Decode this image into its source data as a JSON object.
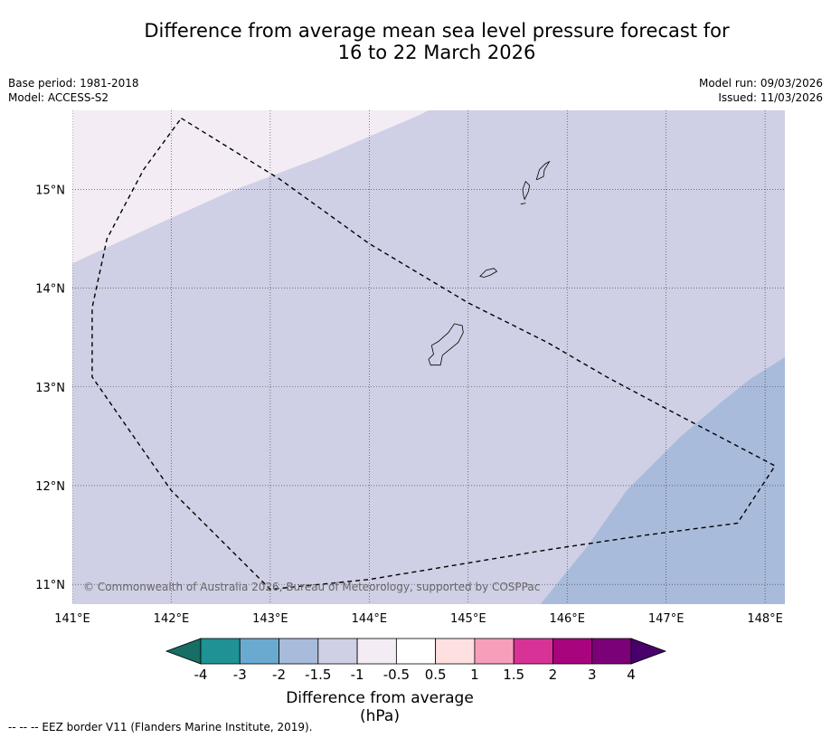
{
  "title": {
    "line1": "Difference from average mean sea level pressure forecast for",
    "line2": "16 to 22 March 2026"
  },
  "meta": {
    "base_period": "Base period: 1981-2018",
    "model": "Model: ACCESS-S2",
    "model_run": "Model run: 09/03/2026",
    "issued": "Issued: 11/03/2026"
  },
  "map": {
    "lon_range": [
      141.0,
      148.2
    ],
    "lat_range": [
      10.8,
      15.8
    ],
    "lon_ticks": [
      141,
      142,
      143,
      144,
      145,
      146,
      147,
      148
    ],
    "lon_labels": [
      "141°E",
      "142°E",
      "143°E",
      "144°E",
      "145°E",
      "146°E",
      "147°E",
      "148°E"
    ],
    "lat_ticks": [
      11,
      12,
      13,
      14,
      15
    ],
    "lat_labels": [
      "11°N",
      "12°N",
      "13°N",
      "14°N",
      "15°N"
    ],
    "copyright": "© Commonwealth of Australia 2026, Bureau of Meteorology, supported by COSPPac",
    "colors": {
      "range_-1.5_-1": "#cfd0e5",
      "range_-1_-0.5": "#f3ecf5",
      "range_-2_-1.5": "#a8bbdb"
    },
    "regions": [
      {
        "name": "region-minus-1.5-to-minus-1",
        "color": "#cfd0e5",
        "poly": [
          [
            141.0,
            10.8
          ],
          [
            148.2,
            10.8
          ],
          [
            148.2,
            15.8
          ],
          [
            141.0,
            15.8
          ]
        ]
      },
      {
        "name": "region-minus-1-to-minus-0.5",
        "color": "#f3ecf5",
        "poly": [
          [
            141.0,
            14.25
          ],
          [
            141.8,
            14.62
          ],
          [
            142.6,
            14.98
          ],
          [
            143.5,
            15.32
          ],
          [
            144.5,
            15.75
          ],
          [
            144.6,
            15.8
          ],
          [
            141.0,
            15.8
          ]
        ]
      },
      {
        "name": "region-minus-2-to-minus-1.5",
        "color": "#a8bbdb",
        "poly": [
          [
            145.73,
            10.8
          ],
          [
            146.2,
            11.38
          ],
          [
            146.6,
            11.95
          ],
          [
            147.15,
            12.5
          ],
          [
            147.55,
            12.84
          ],
          [
            147.85,
            13.08
          ],
          [
            148.2,
            13.3
          ],
          [
            148.2,
            10.8
          ]
        ]
      }
    ],
    "eez": [
      [
        142.1,
        15.72
      ],
      [
        143.1,
        15.1
      ],
      [
        144.0,
        14.45
      ],
      [
        145.0,
        13.85
      ],
      [
        145.8,
        13.45
      ],
      [
        146.4,
        13.1
      ],
      [
        147.0,
        12.78
      ],
      [
        148.1,
        12.2
      ],
      [
        147.72,
        11.62
      ],
      [
        146.8,
        11.5
      ],
      [
        145.8,
        11.35
      ],
      [
        144.9,
        11.2
      ],
      [
        144.0,
        11.05
      ],
      [
        143.0,
        10.95
      ],
      [
        142.0,
        11.95
      ],
      [
        141.2,
        13.1
      ],
      [
        141.2,
        13.8
      ],
      [
        141.35,
        14.5
      ],
      [
        141.72,
        15.2
      ],
      [
        142.1,
        15.72
      ]
    ],
    "islands": [
      {
        "name": "guam-island",
        "poly": [
          [
            144.62,
            13.22
          ],
          [
            144.72,
            13.22
          ],
          [
            144.74,
            13.32
          ],
          [
            144.9,
            13.45
          ],
          [
            144.95,
            13.55
          ],
          [
            144.94,
            13.62
          ],
          [
            144.86,
            13.64
          ],
          [
            144.8,
            13.55
          ],
          [
            144.7,
            13.46
          ],
          [
            144.63,
            13.42
          ],
          [
            144.65,
            13.33
          ],
          [
            144.6,
            13.28
          ]
        ]
      },
      {
        "name": "rota-island",
        "poly": [
          [
            145.12,
            14.12
          ],
          [
            145.18,
            14.18
          ],
          [
            145.26,
            14.2
          ],
          [
            145.29,
            14.17
          ],
          [
            145.22,
            14.13
          ],
          [
            145.16,
            14.11
          ]
        ]
      },
      {
        "name": "tinian-island",
        "poly": [
          [
            145.57,
            14.9
          ],
          [
            145.61,
            14.98
          ],
          [
            145.62,
            15.04
          ],
          [
            145.58,
            15.08
          ],
          [
            145.55,
            15.0
          ],
          [
            145.56,
            14.93
          ]
        ]
      },
      {
        "name": "saipan-island",
        "poly": [
          [
            145.69,
            15.1
          ],
          [
            145.72,
            15.2
          ],
          [
            145.78,
            15.26
          ],
          [
            145.82,
            15.28
          ],
          [
            145.77,
            15.2
          ],
          [
            145.76,
            15.13
          ],
          [
            145.7,
            15.1
          ]
        ]
      },
      {
        "name": "aguijan-island",
        "poly": [
          [
            145.53,
            14.85
          ],
          [
            145.58,
            14.86
          ]
        ]
      }
    ]
  },
  "colorbar": {
    "colors": [
      "#166e64",
      "#1e9294",
      "#6aaad0",
      "#a8bbdb",
      "#cfd0e5",
      "#f3ecf5",
      "#ffffff",
      "#fde0df",
      "#f79fba",
      "#d83297",
      "#a7047d",
      "#7a0178",
      "#49006a"
    ],
    "tick_labels": [
      "-4",
      "-3",
      "-2",
      "-1.5",
      "-1",
      "-0.5",
      "0.5",
      "1",
      "1.5",
      "2",
      "3",
      "4"
    ],
    "label": "Difference from average (hPa)"
  },
  "footer": "--  --  -- EEZ border V11 (Flanders Marine Institute, 2019)."
}
